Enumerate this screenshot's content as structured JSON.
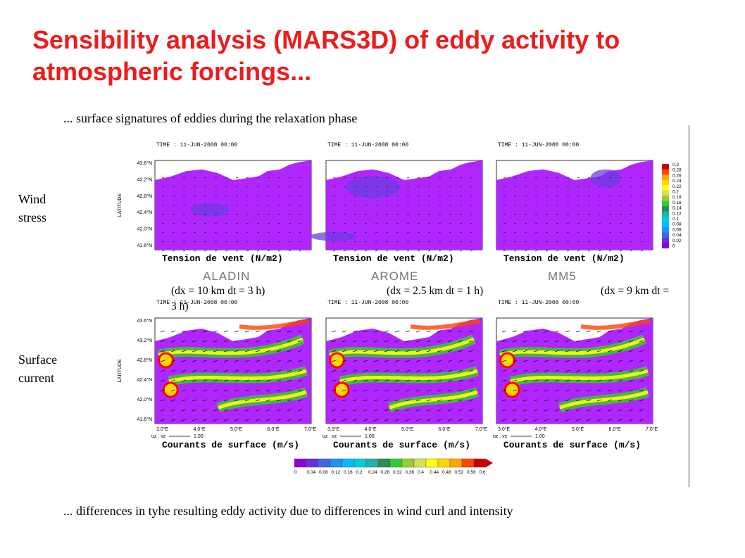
{
  "slide": {
    "title": "Sensibility analysis (MARS3D) of eddy activity to atmospheric forcings...",
    "subtitle": "... surface signatures of eddies during the relaxation phase",
    "footer": "... differences in tyhe resulting eddy activity due to differences in wind curl and intensity",
    "row_labels": {
      "wind": [
        "Wind",
        "stress"
      ],
      "current": [
        "Surface",
        "current"
      ]
    }
  },
  "models": [
    {
      "name": "ALADIN",
      "resolution_line1": "(dx = 10 km dt = 3 h)",
      "resolution_line2": ""
    },
    {
      "name": "AROME",
      "resolution_line1": "(dx =  2.5 km dt = 1 h)",
      "resolution_line2": ""
    },
    {
      "name": "MM5",
      "resolution_line1": "(dx = 9 km dt =",
      "resolution_line2": "3 h)"
    }
  ],
  "maps": {
    "time_label": "TIME : 11-JUN-2008 00:00",
    "latitude_label": "LATITUDE",
    "lat_ticks": [
      "43.6°N",
      "43.2°N",
      "42.8°N",
      "42.4°N",
      "42.0°N",
      "41.6°N"
    ],
    "lon_ticks": [
      "3.0°E",
      "4.0°E",
      "5.0°E",
      "6.0°E",
      "7.0°E"
    ],
    "wind_caption": "Tension de vent (N/m2)",
    "current_caption": "Courants de surface (m/s)",
    "vector_label": "uz , vz",
    "vector_scale": "1.00"
  },
  "colorbars": {
    "wind": [
      "0.3",
      "0.28",
      "0.26",
      "0.24",
      "0.22",
      "0.2",
      "0.18",
      "0.16",
      "0.14",
      "0.12",
      "0.1",
      "0.08",
      "0.06",
      "0.04",
      "0.02",
      "0"
    ],
    "current": [
      "0",
      "0.04",
      "0.08",
      "0.12",
      "0.16",
      "0.2",
      "0.24",
      "0.28",
      "0.32",
      "0.36",
      "0.4",
      "0.44",
      "0.48",
      "0.52",
      "0.56",
      "0.6"
    ],
    "colors": [
      "#9400d3",
      "#6a2de0",
      "#4169e1",
      "#1e90ff",
      "#00bfff",
      "#00ced1",
      "#20b2aa",
      "#2e8b57",
      "#32cd32",
      "#9acd32",
      "#d4e157",
      "#ffff00",
      "#ffd700",
      "#ffa500",
      "#ff4500",
      "#cc0000"
    ]
  }
}
